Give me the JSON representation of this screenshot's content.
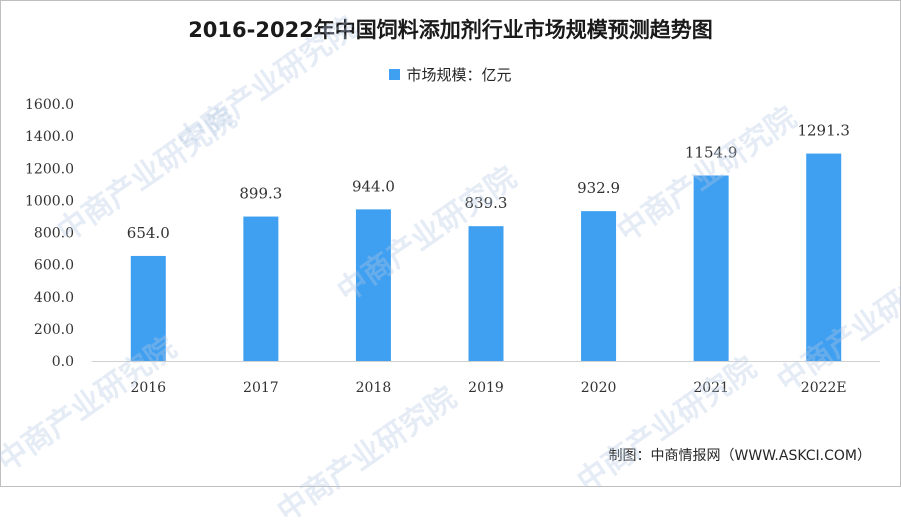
{
  "chart_data": {
    "type": "bar",
    "title": "2016-2022年中国饲料添加剂行业市场规模预测趋势图",
    "categories": [
      "2016",
      "2017",
      "2018",
      "2019",
      "2020",
      "2021",
      "2022E"
    ],
    "series": [
      {
        "name": "市场规模：亿元",
        "values": [
          654.0,
          899.3,
          944.0,
          839.3,
          932.9,
          1154.9,
          1291.3
        ],
        "labels": [
          "654.0",
          "899.3",
          "944.0",
          "839.3",
          "932.9",
          "1154.9",
          "1291.3"
        ],
        "color": "#3f9ff0"
      }
    ],
    "ylim": [
      0,
      1600
    ],
    "yticks": [
      "0.0",
      "200.0",
      "400.0",
      "600.0",
      "800.0",
      "1000.0",
      "1200.0",
      "1400.0",
      "1600.0"
    ],
    "grid": false,
    "legend_position": "top-center"
  },
  "source": "制图：中商情报网（WWW.ASKCI.COM）",
  "watermark": "中商产业研究院"
}
